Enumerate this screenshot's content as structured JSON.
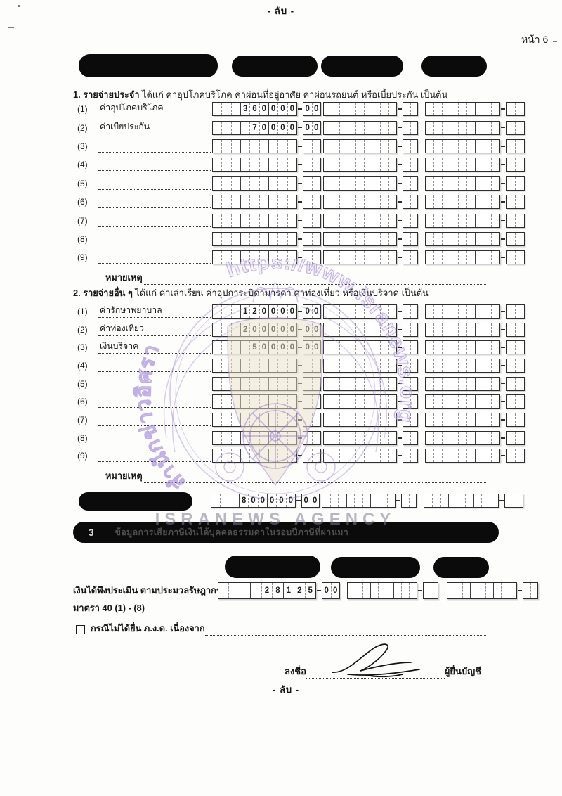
{
  "page": {
    "conf_top": "- ลับ -",
    "conf_bottom": "- ลับ -",
    "page_number": "หน้า 6"
  },
  "section1": {
    "title_bold": "1. รายจ่ายประจำ",
    "title_rest": " ได้แก่ ค่าอุปโภคบริโภค ค่าผ่อนที่อยู่อาศัย ค่าผ่อนรถยนต์ หรือเบี้ยประกัน  เป็นต้น",
    "note_label": "หมายเหตุ",
    "rows": [
      {
        "no": "(1)",
        "label": "ค่าอุปโภคบริโภค",
        "value": "360000",
        "satang": "00"
      },
      {
        "no": "(2)",
        "label": "ค่าเบี้ยประกัน",
        "value": "70000",
        "satang": "00"
      },
      {
        "no": "(3)",
        "label": "",
        "value": "",
        "satang": ""
      },
      {
        "no": "(4)",
        "label": "",
        "value": "",
        "satang": ""
      },
      {
        "no": "(5)",
        "label": "",
        "value": "",
        "satang": ""
      },
      {
        "no": "(6)",
        "label": "",
        "value": "",
        "satang": ""
      },
      {
        "no": "(7)",
        "label": "",
        "value": "",
        "satang": ""
      },
      {
        "no": "(8)",
        "label": "",
        "value": "",
        "satang": ""
      },
      {
        "no": "(9)",
        "label": "",
        "value": "",
        "satang": ""
      }
    ]
  },
  "section2": {
    "title_bold": "2. รายจ่ายอื่น ๆ",
    "title_rest": " ได้แก่ ค่าเล่าเรียน ค่าอุปการะบิดามารดา ค่าท่องเที่ยว หรือเงินบริจาค เป็นต้น",
    "note_label": "หมายเหตุ",
    "rows": [
      {
        "no": "(1)",
        "label": "ค่ารักษาพยาบาล",
        "value": "120000",
        "satang": "00"
      },
      {
        "no": "(2)",
        "label": "ค่าท่องเที่ยว",
        "value": "200000",
        "satang": "00"
      },
      {
        "no": "(3)",
        "label": "เงินบริจาค",
        "value": "50000",
        "satang": "00"
      },
      {
        "no": "(4)",
        "label": "",
        "value": "",
        "satang": ""
      },
      {
        "no": "(5)",
        "label": "",
        "value": "",
        "satang": ""
      },
      {
        "no": "(6)",
        "label": "",
        "value": "",
        "satang": ""
      },
      {
        "no": "(7)",
        "label": "",
        "value": "",
        "satang": ""
      },
      {
        "no": "(8)",
        "label": "",
        "value": "",
        "satang": ""
      },
      {
        "no": "(9)",
        "label": "",
        "value": "",
        "satang": ""
      }
    ]
  },
  "total": {
    "value": "800000",
    "satang": "00"
  },
  "section3": {
    "number": "3",
    "title": "ข้อมูลการเสียภาษีเงินได้บุคคลธรรมดาในรอบปีภาษีที่ผ่านมา",
    "income_line1": "เงินได้พึงประเมิน ตามประมวลรัษฎากร",
    "income_line2": "มาตรา 40 (1) - (8)",
    "income": {
      "value": "28125",
      "satang": "00"
    },
    "not_filed_label": "กรณีไม่ได้ยื่น ภ.ง.ด. เนื่องจาก"
  },
  "signature": {
    "sign_label": "ลงชื่อ",
    "signer_label": "ผู้ยื่นบัญชี"
  },
  "watermark": {
    "thai_name": "สำนักข่าวอิศรา",
    "url": "https://www.isranews.org",
    "agency": "ISRANEWS AGENCY"
  },
  "colors": {
    "redaction": "#0b0b0b",
    "watermark_purple": "#9775d4",
    "watermark_cream": "#e9e0c8"
  }
}
